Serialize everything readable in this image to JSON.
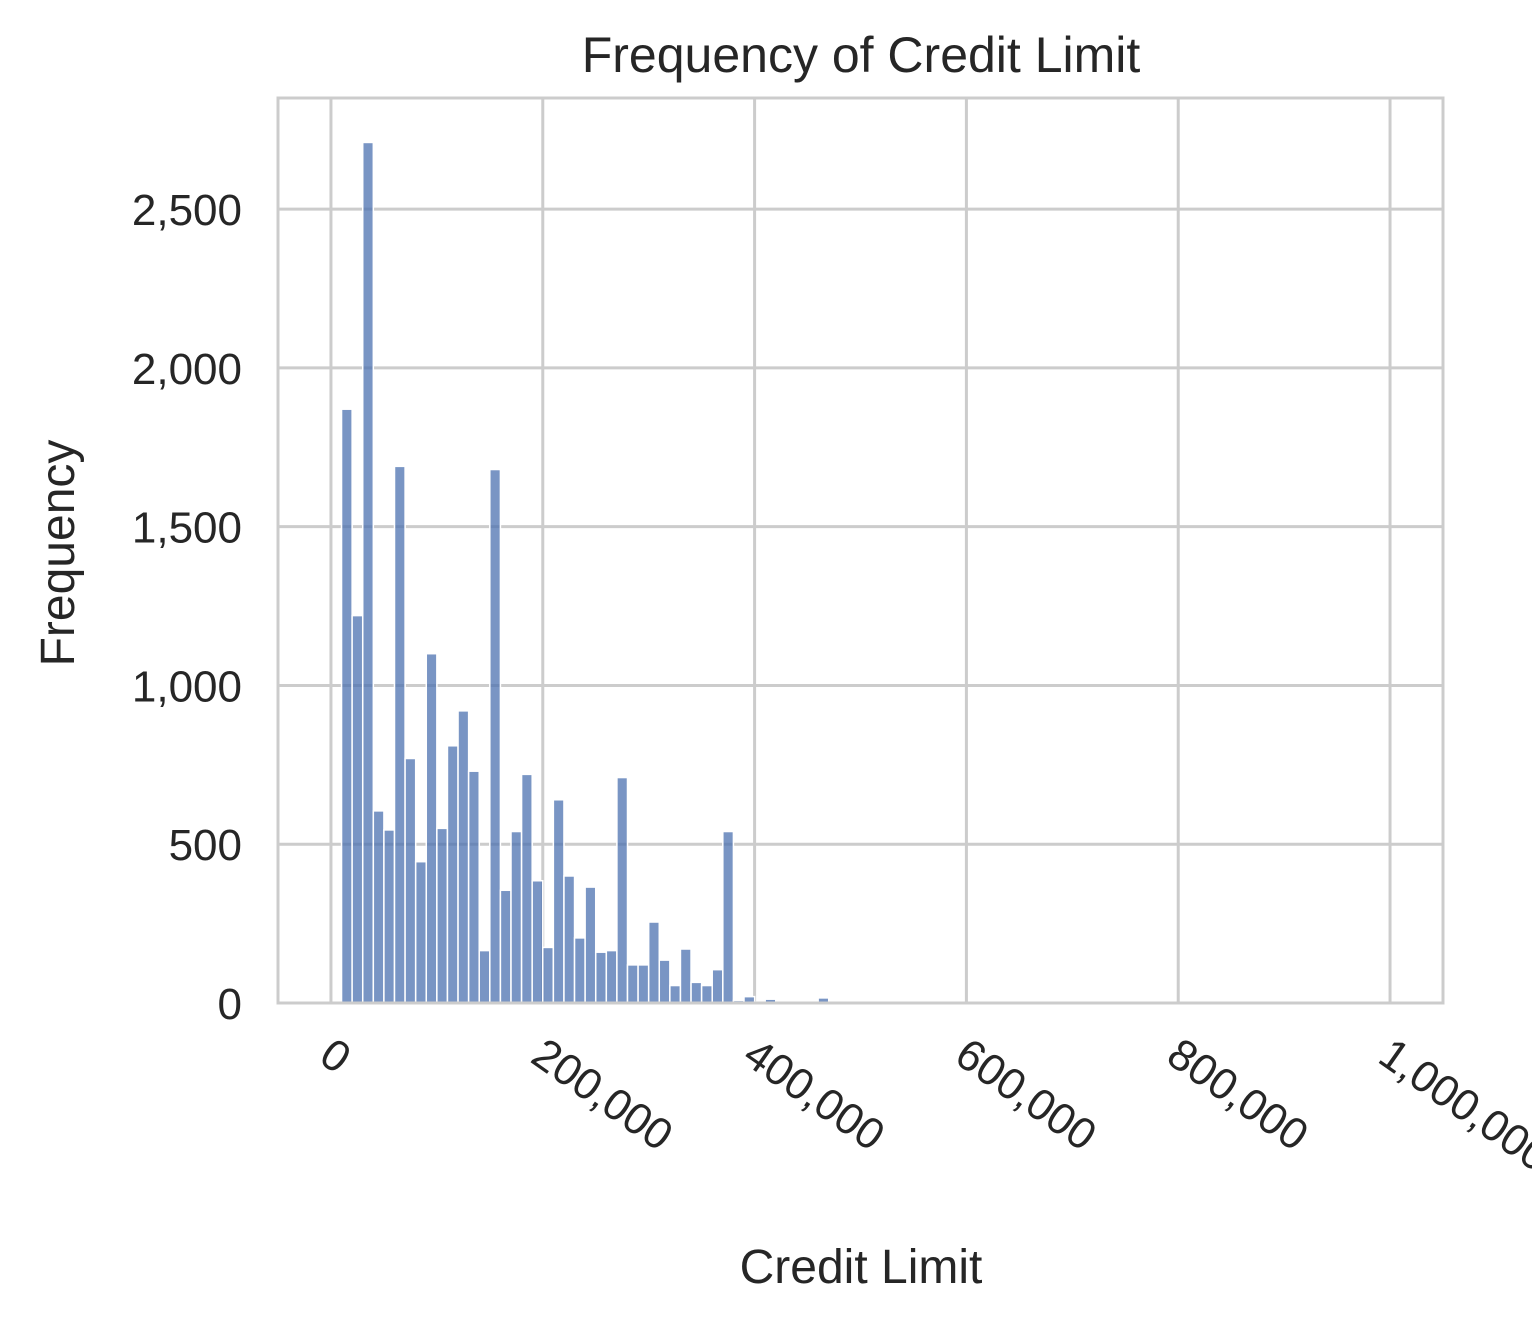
{
  "chart_data": {
    "type": "bar",
    "title": "Frequency of Credit Limit",
    "xlabel": "Credit Limit",
    "ylabel": "Frequency",
    "xlim": [
      -50000,
      1050000
    ],
    "ylim": [
      0,
      2850
    ],
    "xticks": [
      0,
      200000,
      400000,
      600000,
      800000,
      1000000
    ],
    "xtick_labels": [
      "0",
      "200,000",
      "400,000",
      "600,000",
      "800,000",
      "1,000,000"
    ],
    "yticks": [
      0,
      500,
      1000,
      1500,
      2000,
      2500
    ],
    "ytick_labels": [
      "0",
      "500",
      "1,000",
      "1,500",
      "2,000",
      "2,500"
    ],
    "grid": true,
    "bar_color": "#4c72b0",
    "bin_start": 10000,
    "bin_width": 10000,
    "values": [
      1870,
      1220,
      2710,
      605,
      545,
      1690,
      770,
      445,
      1100,
      550,
      810,
      920,
      730,
      165,
      1680,
      355,
      540,
      720,
      385,
      175,
      640,
      400,
      205,
      365,
      160,
      165,
      710,
      120,
      120,
      255,
      135,
      55,
      170,
      65,
      55,
      105,
      540,
      8,
      20,
      3,
      12,
      5,
      4,
      5,
      3,
      16,
      4,
      2,
      2,
      2,
      2,
      1,
      1,
      1,
      1,
      1,
      1,
      1,
      1,
      1,
      1,
      1,
      1,
      1,
      1,
      1,
      1,
      1,
      1,
      1,
      1,
      1,
      1,
      1,
      1,
      1,
      1,
      1,
      1,
      1,
      1,
      1,
      1,
      1,
      1,
      1,
      1,
      1,
      1,
      1,
      1
    ]
  }
}
